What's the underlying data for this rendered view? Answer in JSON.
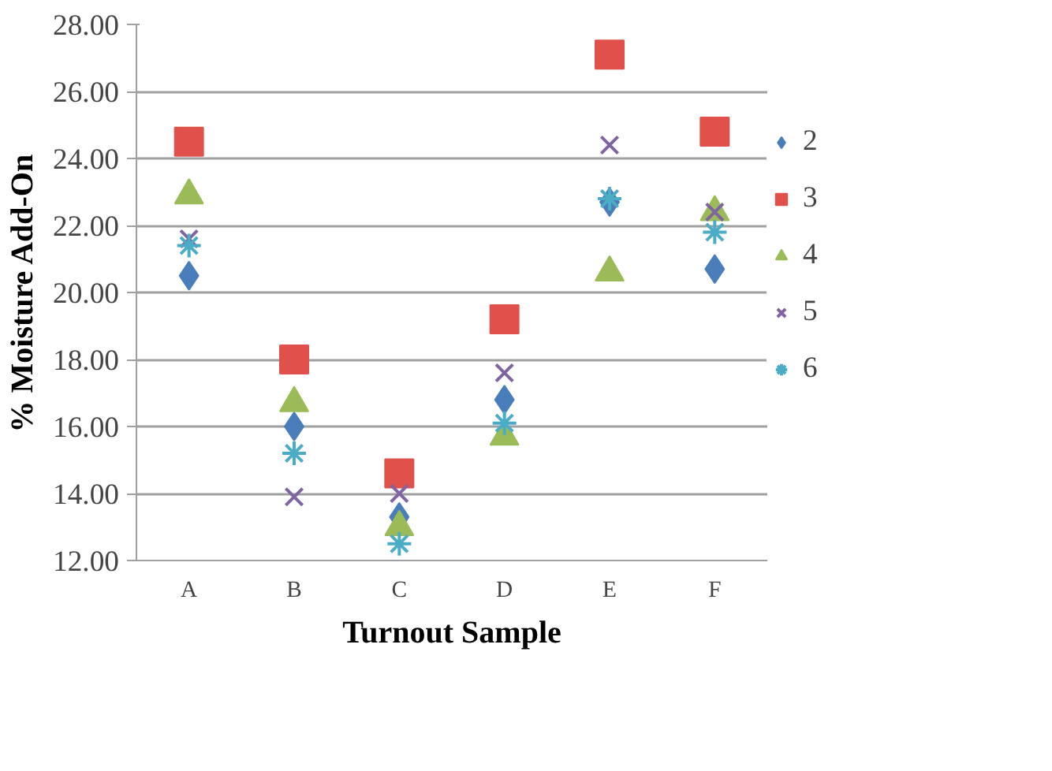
{
  "chart_data": {
    "type": "scatter",
    "xlabel": "Turnout Sample",
    "ylabel": "% Moisture Add-On",
    "categories": [
      "A",
      "B",
      "C",
      "D",
      "E",
      "F"
    ],
    "ylim": [
      12,
      28
    ],
    "yticks": [
      {
        "value": 12,
        "label": "12.00"
      },
      {
        "value": 14,
        "label": "14.00"
      },
      {
        "value": 16,
        "label": "16.00"
      },
      {
        "value": 18,
        "label": "18.00"
      },
      {
        "value": 20,
        "label": "20.00"
      },
      {
        "value": 22,
        "label": "22.00"
      },
      {
        "value": 24,
        "label": "24.00"
      },
      {
        "value": 26,
        "label": "26.00"
      },
      {
        "value": 28,
        "label": "28.00"
      }
    ],
    "grid": "y",
    "legend": "right",
    "series": [
      {
        "name": "2",
        "color": "#4a7ebb",
        "marker": "diamond",
        "values": [
          20.5,
          16.0,
          13.3,
          16.8,
          22.7,
          20.7
        ]
      },
      {
        "name": "3",
        "color": "#e0514b",
        "marker": "square",
        "values": [
          24.5,
          18.0,
          14.6,
          19.2,
          27.1,
          24.8
        ]
      },
      {
        "name": "4",
        "color": "#9bbb59",
        "marker": "triangle",
        "values": [
          22.9,
          16.7,
          13.0,
          15.7,
          20.6,
          22.4
        ]
      },
      {
        "name": "5",
        "color": "#8064a2",
        "marker": "cross",
        "values": [
          21.6,
          13.9,
          14.0,
          17.6,
          24.4,
          22.4
        ]
      },
      {
        "name": "6",
        "color": "#4bacc6",
        "values": [
          21.4,
          15.2,
          12.5,
          16.1,
          22.8,
          21.8
        ]
      }
    ]
  }
}
